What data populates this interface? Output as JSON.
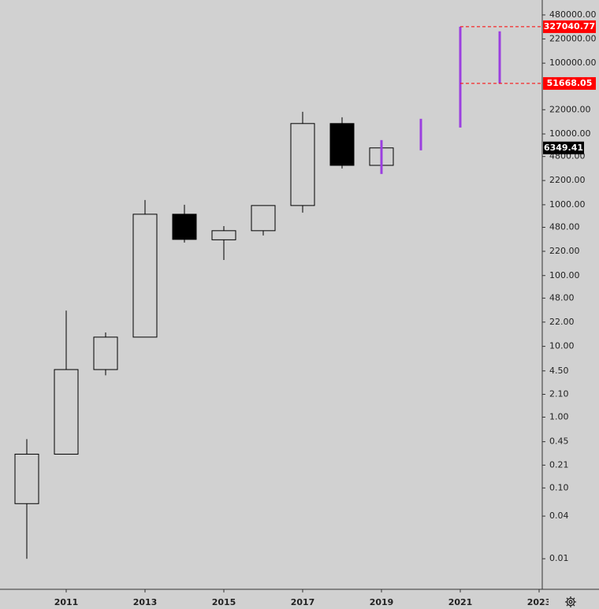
{
  "chart_data": {
    "type": "candlestick",
    "log_scale": true,
    "background": "#d1d1d1",
    "up_color": "#d1d1d1",
    "down_color": "#000000",
    "wick_color": "#000000",
    "x": [
      2010,
      2011,
      2012,
      2013,
      2014,
      2015,
      2016,
      2017,
      2018,
      2019
    ],
    "open": [
      0.06,
      0.3,
      4.7,
      13.5,
      735,
      320,
      430,
      975,
      14030,
      3600
    ],
    "high": [
      0.49,
      32,
      15.7,
      1167,
      1000,
      500,
      975,
      20600,
      17200,
      7000
    ],
    "low": [
      0.01,
      0.3,
      3.9,
      13.5,
      292,
      166,
      368,
      774,
      3250,
      3300
    ],
    "close": [
      0.3,
      4.7,
      13.5,
      735,
      324,
      430,
      975,
      14030,
      3600,
      6349.41
    ],
    "ranges": {
      "color": "#9b3fe0",
      "x": [
        2019,
        2020,
        2021,
        2022
      ],
      "low": [
        2720,
        5870,
        12330,
        51668.05
      ],
      "high": [
        8190,
        16370,
        327040.77,
        282000
      ]
    },
    "price_lines": {
      "color": "#ff0000",
      "from_x": 2021,
      "values": [
        327040.77,
        51668.05
      ]
    },
    "xlim": [
      2009.32,
      2023.08
    ],
    "xticks": [
      2011,
      2013,
      2015,
      2017,
      2019,
      2021,
      2023
    ],
    "ylim": [
      0.0037,
      780000
    ],
    "yticks": [
      {
        "value": 480000,
        "label": "480000.00"
      },
      {
        "value": 220000,
        "label": "220000.00"
      },
      {
        "value": 100000,
        "label": "100000.00"
      },
      {
        "value": 22000,
        "label": "22000.00"
      },
      {
        "value": 10000,
        "label": "10000.00"
      },
      {
        "value": 4800,
        "label": "4800.00"
      },
      {
        "value": 2200,
        "label": "2200.00"
      },
      {
        "value": 1000,
        "label": "1000.00"
      },
      {
        "value": 480,
        "label": "480.00"
      },
      {
        "value": 220,
        "label": "220.00"
      },
      {
        "value": 100,
        "label": "100.00"
      },
      {
        "value": 48,
        "label": "48.00"
      },
      {
        "value": 22,
        "label": "22.00"
      },
      {
        "value": 10,
        "label": "10.00"
      },
      {
        "value": 4.5,
        "label": "4.50"
      },
      {
        "value": 2.1,
        "label": "2.10"
      },
      {
        "value": 1,
        "label": "1.00"
      },
      0.45,
      0.21,
      {
        "value": 0.1,
        "label": "0.10"
      },
      0.04,
      0.01
    ]
  }
}
